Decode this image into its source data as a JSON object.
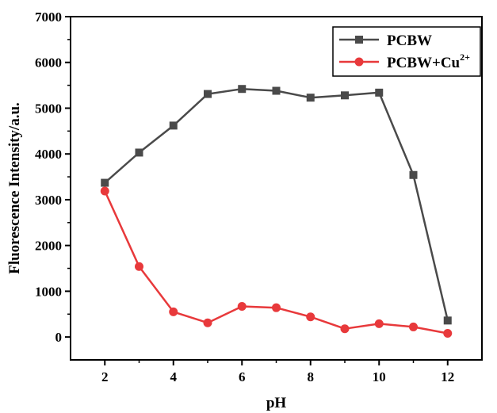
{
  "chart_data": {
    "type": "line",
    "xlabel": "pH",
    "ylabel": "Fluorescence Intensity/a.u.",
    "xlim": [
      1,
      13
    ],
    "ylim": [
      -500,
      7000
    ],
    "x_ticks": [
      2,
      4,
      6,
      8,
      10,
      12
    ],
    "y_ticks": [
      0,
      1000,
      2000,
      3000,
      4000,
      5000,
      6000,
      7000
    ],
    "x_tick_labels": [
      "2",
      "4",
      "6",
      "8",
      "10",
      "12"
    ],
    "y_tick_labels": [
      "0",
      "1000",
      "2000",
      "3000",
      "4000",
      "5000",
      "6000",
      "7000"
    ],
    "grid": false,
    "legend_position": "top-right",
    "x": [
      2,
      3,
      4,
      5,
      6,
      7,
      8,
      9,
      10,
      11,
      12
    ],
    "series": [
      {
        "name": "PCBW",
        "legend_parts": [
          {
            "text": "PCBW"
          }
        ],
        "color": "#4a4a4a",
        "marker": "square",
        "values": [
          3370,
          4030,
          4620,
          5310,
          5420,
          5380,
          5230,
          5280,
          5340,
          3540,
          360
        ]
      },
      {
        "name": "PCBW+Cu2+",
        "legend_parts": [
          {
            "text": "PCBW+Cu"
          },
          {
            "text": "2+",
            "sup": true
          }
        ],
        "color": "#e8393b",
        "marker": "circle",
        "values": [
          3190,
          1540,
          550,
          310,
          670,
          640,
          440,
          180,
          290,
          220,
          80
        ]
      }
    ]
  }
}
